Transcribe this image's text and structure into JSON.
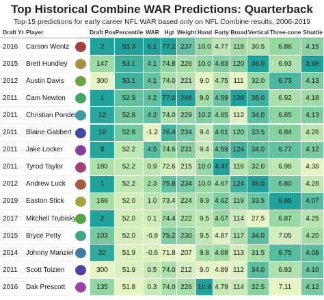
{
  "header": {
    "title": "Top Historical Combine WAR Predictions: Quarterback",
    "subtitle": "Top-15 predictions for early career NFL WAR based only on NFL Combine results, 2006-2019"
  },
  "table": {
    "columns": [
      {
        "label": "Draft Yr"
      },
      {
        "label": "Player"
      },
      {
        "label": ""
      },
      {
        "label": "Draft Pos",
        "shade": "low"
      },
      {
        "label": "Percentile",
        "shade": "high"
      },
      {
        "label": "WAR",
        "shade": "high"
      },
      {
        "label": "Hgt",
        "shade": "high"
      },
      {
        "label": "Weight",
        "shade": "high"
      },
      {
        "label": "Hand",
        "shade": "high"
      },
      {
        "label": "Forty",
        "shade": "low"
      },
      {
        "label": "Broad",
        "shade": "high"
      },
      {
        "label": "Vertical",
        "shade": "high"
      },
      {
        "label": "Three-cone",
        "shade": "low"
      },
      {
        "label": "Shuttle",
        "shade": "low"
      }
    ],
    "shade_colors": [
      "#e6f5c4",
      "#9edca4",
      "#1fa39b"
    ],
    "rows": [
      [
        "2016",
        "Carson Wentz",
        "",
        "2",
        "53.3",
        "6.1",
        "77.2",
        "237",
        "10.0",
        "4.77",
        "118",
        "30.5",
        "6.86",
        "4.15"
      ],
      [
        "2015",
        "Brett Hundley",
        "",
        "147",
        "53.1",
        "4.1",
        "74.8",
        "226",
        "10.0",
        "4.63",
        "120",
        "36.0",
        "6.93",
        "3.98"
      ],
      [
        "2012",
        "Austin Davis",
        "",
        "300",
        "53.1",
        "4.1",
        "74.0",
        "221",
        "9.0",
        "4.75",
        "111",
        "32.0",
        "6.73",
        "4.13"
      ],
      [
        "2011",
        "Cam Newton",
        "",
        "1",
        "52.9",
        "4.2",
        "77.0",
        "248",
        "9.9",
        "4.59",
        "126",
        "35.0",
        "6.92",
        "4.18"
      ],
      [
        "2011",
        "Christian Ponder",
        "",
        "12",
        "52.8",
        "4.2",
        "74.0",
        "229",
        "10.2",
        "4.65",
        "112",
        "34.0",
        "6.85",
        "4.13"
      ],
      [
        "2011",
        "Blaine Gabbert",
        "",
        "10",
        "52.8",
        "-1.2",
        "76.4",
        "234",
        "9.4",
        "4.61",
        "120",
        "33.5",
        "6.84",
        "4.26"
      ],
      [
        "2011",
        "Jake Locker",
        "",
        "8",
        "52.2",
        "4.5",
        "74.6",
        "231",
        "9.4",
        "4.59",
        "124",
        "34.0",
        "6.77",
        "4.12"
      ],
      [
        "2011",
        "Tyrod Taylor",
        "",
        "180",
        "52.2",
        "0.9",
        "72.6",
        "215",
        "10.0",
        "4.47",
        "116",
        "32.0",
        "6.98",
        "4.38"
      ],
      [
        "2012",
        "Andrew Luck",
        "",
        "1",
        "52.2",
        "2.3",
        "75.8",
        "234",
        "10.0",
        "4.67",
        "124",
        "36.0",
        "6.80",
        "4.28"
      ],
      [
        "2019",
        "Easton Stick",
        "",
        "166",
        "52.0",
        "1.0",
        "73.4",
        "224",
        "9.9",
        "4.62",
        "119",
        "33.5",
        "6.65",
        "4.07"
      ],
      [
        "2017",
        "Mitchell Trubisky",
        "",
        "2",
        "52.0",
        "0.1",
        "74.4",
        "222",
        "9.5",
        "4.67",
        "114",
        "27.5",
        "6.87",
        "4.25"
      ],
      [
        "2015",
        "Bryce Petty",
        "",
        "103",
        "52.0",
        "-0.8",
        "75.2",
        "230",
        "9.5",
        "4.87",
        "117",
        "34.0",
        "7.05",
        "4.20"
      ],
      [
        "2014",
        "Johnny Manziel",
        "",
        "22",
        "51.9",
        "-0.6",
        "71.8",
        "207",
        "9.8",
        "4.68",
        "113",
        "31.5",
        "6.75",
        "4.08"
      ],
      [
        "2011",
        "Scott Tolzien",
        "",
        "300",
        "51.9",
        "0.5",
        "74.0",
        "212",
        "9.0",
        "4.89",
        "112",
        "34.0",
        "6.93",
        "4.10"
      ],
      [
        "2016",
        "Dak Prescott",
        "",
        "135",
        "51.8",
        "0.3",
        "74.0",
        "226",
        "10.9",
        "4.79",
        "114",
        "32.5",
        "7.11",
        "4.12"
      ]
    ]
  }
}
